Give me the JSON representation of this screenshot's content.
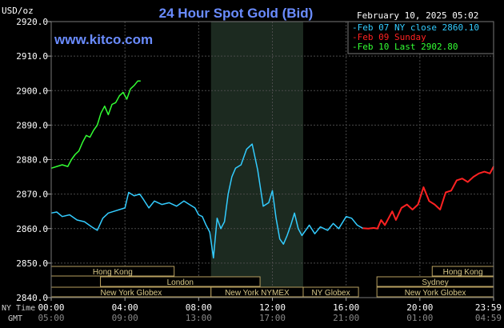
{
  "header": {
    "unit": "USD/oz",
    "title": "24 Hour Spot Gold (Bid)",
    "datetime": "February 10, 2025 05:02",
    "site": "www.kitco.com"
  },
  "legend": [
    {
      "text": "-Feb 07 NY close 2860.10",
      "color": "#33ccff"
    },
    {
      "text": "-Feb 09 Sunday",
      "color": "#ff2222"
    },
    {
      "text": "-Feb 10 Last 2902.80",
      "color": "#33ff33"
    }
  ],
  "sessions": [
    {
      "label": "Hong Kong",
      "from": 0,
      "to": 6.67
    },
    {
      "label": "London",
      "from": 2.67,
      "to": 11.33
    },
    {
      "label": "New York Globex",
      "from": 0,
      "to": 8.67
    },
    {
      "label": "New York NYMEX",
      "from": 8.67,
      "to": 13.67
    },
    {
      "label": "NY Globex",
      "from": 13.67,
      "to": 16.67
    },
    {
      "label": "Hong Kong",
      "from": 20.67,
      "to": 24
    },
    {
      "label": "Sydney",
      "from": 17.67,
      "to": 24
    },
    {
      "label": "New York Globex",
      "from": 17.67,
      "to": 24
    }
  ],
  "axis_row_labels": {
    "ny": "NY Time",
    "gmt": "GMT"
  },
  "chart_data": {
    "type": "line",
    "title": "24 Hour Spot Gold (Bid)",
    "ylabel": "USD/oz",
    "ylim": [
      2840,
      2920
    ],
    "yticks": [
      "2840.0",
      "2850.0",
      "2860.0",
      "2870.0",
      "2880.0",
      "2890.0",
      "2900.0",
      "2910.0",
      "2920.0"
    ],
    "xlim": [
      0,
      24
    ],
    "xticks": [
      {
        "ny": "00:00",
        "gmt": "05:00"
      },
      {
        "ny": "04:00",
        "gmt": "09:00"
      },
      {
        "ny": "08:00",
        "gmt": "13:00"
      },
      {
        "ny": "12:00",
        "gmt": "17:00"
      },
      {
        "ny": "16:00",
        "gmt": "21:00"
      },
      {
        "ny": "20:00",
        "gmt": "01:00"
      },
      {
        "ny": "23:59",
        "gmt": "04:59"
      }
    ],
    "nymex_shade": [
      8.67,
      13.67
    ],
    "grid": true,
    "series": [
      {
        "name": "Feb 07 NY close 2860.10",
        "color": "#33ccff",
        "x": [
          0,
          0.3,
          0.6,
          1.0,
          1.4,
          1.8,
          2.2,
          2.5,
          2.8,
          3.1,
          3.4,
          3.7,
          4.0,
          4.2,
          4.5,
          4.8,
          5.0,
          5.3,
          5.6,
          6.0,
          6.4,
          6.8,
          7.2,
          7.5,
          7.8,
          8.0,
          8.2,
          8.4,
          8.6,
          8.8,
          9.0,
          9.2,
          9.4,
          9.6,
          9.8,
          10.0,
          10.3,
          10.6,
          10.9,
          11.2,
          11.5,
          11.8,
          12.0,
          12.2,
          12.4,
          12.6,
          12.8,
          13.0,
          13.2,
          13.4,
          13.6,
          13.8,
          14.0,
          14.3,
          14.6,
          15.0,
          15.3,
          15.6,
          16.0,
          16.3,
          16.6,
          16.9
        ],
        "y": [
          2864.5,
          2864.8,
          2863.5,
          2864.0,
          2862.5,
          2862.0,
          2860.5,
          2859.5,
          2863.0,
          2864.5,
          2865.0,
          2865.5,
          2866.0,
          2870.5,
          2869.5,
          2870.0,
          2868.5,
          2866.0,
          2868.0,
          2867.0,
          2867.5,
          2866.5,
          2868.0,
          2867.0,
          2866.0,
          2864.0,
          2863.5,
          2861.0,
          2859.0,
          2851.5,
          2863.0,
          2860.0,
          2862.0,
          2870.0,
          2875.0,
          2877.5,
          2878.5,
          2883.0,
          2884.5,
          2877.0,
          2866.5,
          2867.5,
          2871.0,
          2863.0,
          2857.0,
          2855.5,
          2858.0,
          2861.0,
          2864.5,
          2860.0,
          2858.0,
          2859.5,
          2861.0,
          2858.5,
          2860.5,
          2859.5,
          2861.5,
          2860.0,
          2863.5,
          2863.0,
          2861.0,
          2860.1
        ]
      },
      {
        "name": "Feb 09 Sunday",
        "color": "#ff2222",
        "x": [
          16.9,
          17.2,
          17.5,
          17.7,
          17.9,
          18.1,
          18.3,
          18.5,
          18.7,
          19.0,
          19.3,
          19.6,
          19.9,
          20.2,
          20.5,
          20.8,
          21.1,
          21.4,
          21.7,
          22.0,
          22.3,
          22.6,
          22.9,
          23.2,
          23.5,
          23.8,
          24.0
        ],
        "y": [
          2860.1,
          2860.0,
          2860.2,
          2860.0,
          2862.5,
          2861.0,
          2863.0,
          2865.0,
          2862.5,
          2866.0,
          2867.0,
          2865.5,
          2867.0,
          2872.0,
          2868.0,
          2867.0,
          2865.5,
          2870.5,
          2871.0,
          2874.0,
          2874.5,
          2873.5,
          2875.0,
          2876.0,
          2876.5,
          2876.0,
          2878.0
        ]
      },
      {
        "name": "Feb 10 Last 2902.80",
        "color": "#33ff33",
        "x": [
          0,
          0.3,
          0.6,
          0.9,
          1.1,
          1.3,
          1.5,
          1.7,
          1.9,
          2.1,
          2.3,
          2.5,
          2.7,
          2.9,
          3.1,
          3.3,
          3.5,
          3.7,
          3.9,
          4.1,
          4.3,
          4.5,
          4.7,
          4.85
        ],
        "y": [
          2877.5,
          2878.0,
          2878.5,
          2878.0,
          2880.0,
          2881.5,
          2882.5,
          2885.0,
          2887.0,
          2886.5,
          2888.5,
          2890.0,
          2893.5,
          2895.5,
          2893.0,
          2896.0,
          2896.5,
          2898.5,
          2899.5,
          2897.5,
          2900.5,
          2901.5,
          2902.8,
          2902.8
        ]
      }
    ]
  }
}
